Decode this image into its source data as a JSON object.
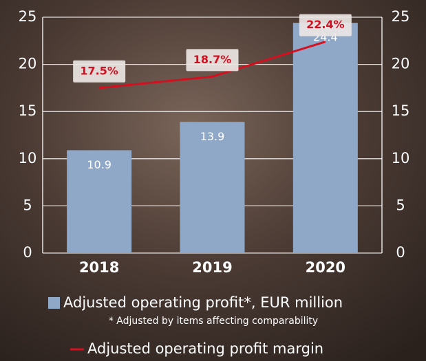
{
  "chart_data": {
    "type": "bar-line",
    "categories": [
      "2018",
      "2019",
      "2020"
    ],
    "series": [
      {
        "name": "Adjusted operating profit*, EUR million",
        "type": "bar",
        "color": "#8fa8c8",
        "values": [
          10.9,
          13.9,
          24.4
        ]
      },
      {
        "name": "Adjusted operating profit margin",
        "type": "line",
        "axis": "y2",
        "color": "#d3101f",
        "values": [
          17.5,
          18.7,
          22.4
        ],
        "value_labels": [
          "17.5%",
          "18.7%",
          "22.4%"
        ]
      }
    ],
    "footnote": "* Adjusted by items affecting comparability",
    "ylim": [
      0,
      25
    ],
    "yticks": [
      0,
      5,
      10,
      15,
      20,
      25
    ],
    "y2lim": [
      0,
      25
    ],
    "y2ticks": [
      0,
      5,
      10,
      15,
      20,
      25
    ],
    "grid": true
  }
}
